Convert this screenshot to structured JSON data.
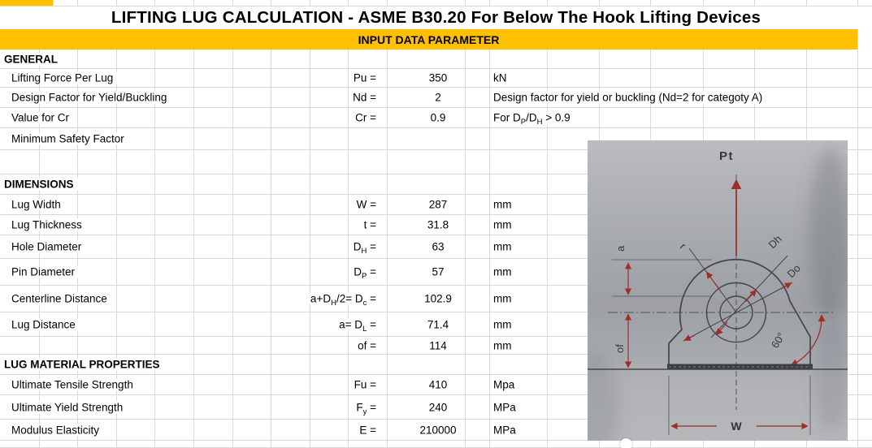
{
  "sheet": {
    "title": "LIFTING LUG CALCULATION - ASME B30.20 For Below The Hook Lifting Devices",
    "band_label": "INPUT DATA PARAMETER",
    "accent_color": "#FFC000",
    "rows": [
      {
        "type": "section",
        "label": "GENERAL"
      },
      {
        "type": "data",
        "label": "Lifting Force Per Lug",
        "sym": "Pu =",
        "value": "350",
        "unit": "kN"
      },
      {
        "type": "data",
        "label": "Design Factor for Yield/Buckling",
        "sym": "Nd =",
        "value": "2",
        "comment": "Design factor for yield or buckling (Nd=2 for categoty A)"
      },
      {
        "type": "data",
        "label": "Value for Cr",
        "sym": "Cr =",
        "value": "0.9",
        "comment": "For D_P/D_H > 0.9"
      },
      {
        "type": "data",
        "label": "Minimum Safety Factor"
      },
      {
        "type": "empty"
      },
      {
        "type": "section",
        "label": "DIMENSIONS"
      },
      {
        "type": "data",
        "label": "Lug Width",
        "sym": "W =",
        "value": "287",
        "unit": "mm"
      },
      {
        "type": "data",
        "label": "Lug Thickness",
        "sym": "t =",
        "value": "31.8",
        "unit": "mm"
      },
      {
        "type": "data",
        "label": "Hole Diameter",
        "sym": "D_H =",
        "value": "63",
        "unit": "mm"
      },
      {
        "type": "data",
        "label": "Pin Diameter",
        "sym": "D_P =",
        "value": "57",
        "unit": "mm"
      },
      {
        "type": "data",
        "label": "Centerline Distance",
        "sym": "a+D_H/2= D_c =",
        "value": "102.9",
        "unit": "mm"
      },
      {
        "type": "data",
        "label": "Lug Distance",
        "sym": "a= D_L =",
        "value": "71.4",
        "unit": "mm"
      },
      {
        "type": "data",
        "label": "",
        "sym": "of =",
        "value": "114",
        "unit": "mm"
      },
      {
        "type": "section",
        "label": "LUG MATERIAL PROPERTIES"
      },
      {
        "type": "data",
        "label": "Ultimate Tensile Strength",
        "sym": "Fu =",
        "value": "410",
        "unit": "Mpa"
      },
      {
        "type": "data",
        "label": "Ultimate Yield Strength",
        "sym": "F_y =",
        "value": "240",
        "unit": "MPa"
      },
      {
        "type": "data",
        "label": "Modulus Elasticity",
        "sym": "E =",
        "value": "210000",
        "unit": "MPa"
      },
      {
        "type": "empty"
      }
    ]
  },
  "diagram": {
    "labels": {
      "force": "Pt",
      "dim_a": "a",
      "radius": "r",
      "hole_dia": "Dh",
      "outer_dia": "Do",
      "offset": "of",
      "angle": "60°",
      "width": "W"
    }
  }
}
